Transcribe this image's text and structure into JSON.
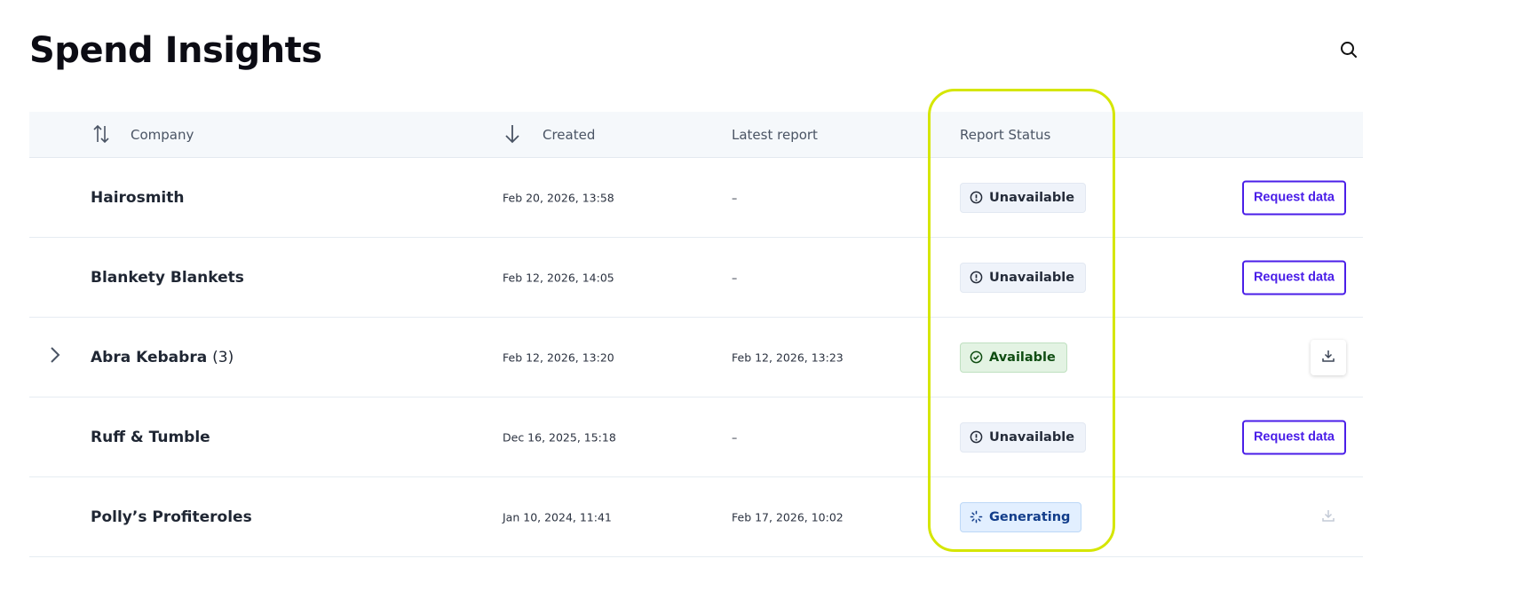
{
  "page": {
    "title": "Spend Insights"
  },
  "table": {
    "headers": {
      "company": "Company",
      "created": "Created",
      "latest_report": "Latest report",
      "report_status": "Report Status"
    },
    "rows": [
      {
        "company": "Hairosmith",
        "count": "",
        "created": "Feb 20, 2026, 13:58",
        "latest": "–",
        "status": "Unavailable",
        "status_type": "unavailable",
        "action": "Request data",
        "expandable": false
      },
      {
        "company": "Blankety Blankets",
        "count": "",
        "created": "Feb 12, 2026, 14:05",
        "latest": "–",
        "status": "Unavailable",
        "status_type": "unavailable",
        "action": "Request data",
        "expandable": false
      },
      {
        "company": "Abra Kebabra",
        "count": "(3)",
        "created": "Feb 12, 2026, 13:20",
        "latest": "Feb 12, 2026, 13:23",
        "status": "Available",
        "status_type": "available",
        "action": "download",
        "expandable": true
      },
      {
        "company": "Ruff & Tumble",
        "count": "",
        "created": "Dec 16, 2025, 15:18",
        "latest": "–",
        "status": "Unavailable",
        "status_type": "unavailable",
        "action": "Request data",
        "expandable": false
      },
      {
        "company": "Polly’s Profiteroles",
        "count": "",
        "created": "Jan 10, 2024, 11:41",
        "latest": "Feb 17, 2026, 10:02",
        "status": "Generating",
        "status_type": "generating",
        "action": "download-disabled",
        "expandable": false
      }
    ]
  },
  "colors": {
    "accent": "#4a1ee8",
    "highlight": "#d5e600",
    "available": "#0f4d12",
    "generating": "#123d8a"
  }
}
